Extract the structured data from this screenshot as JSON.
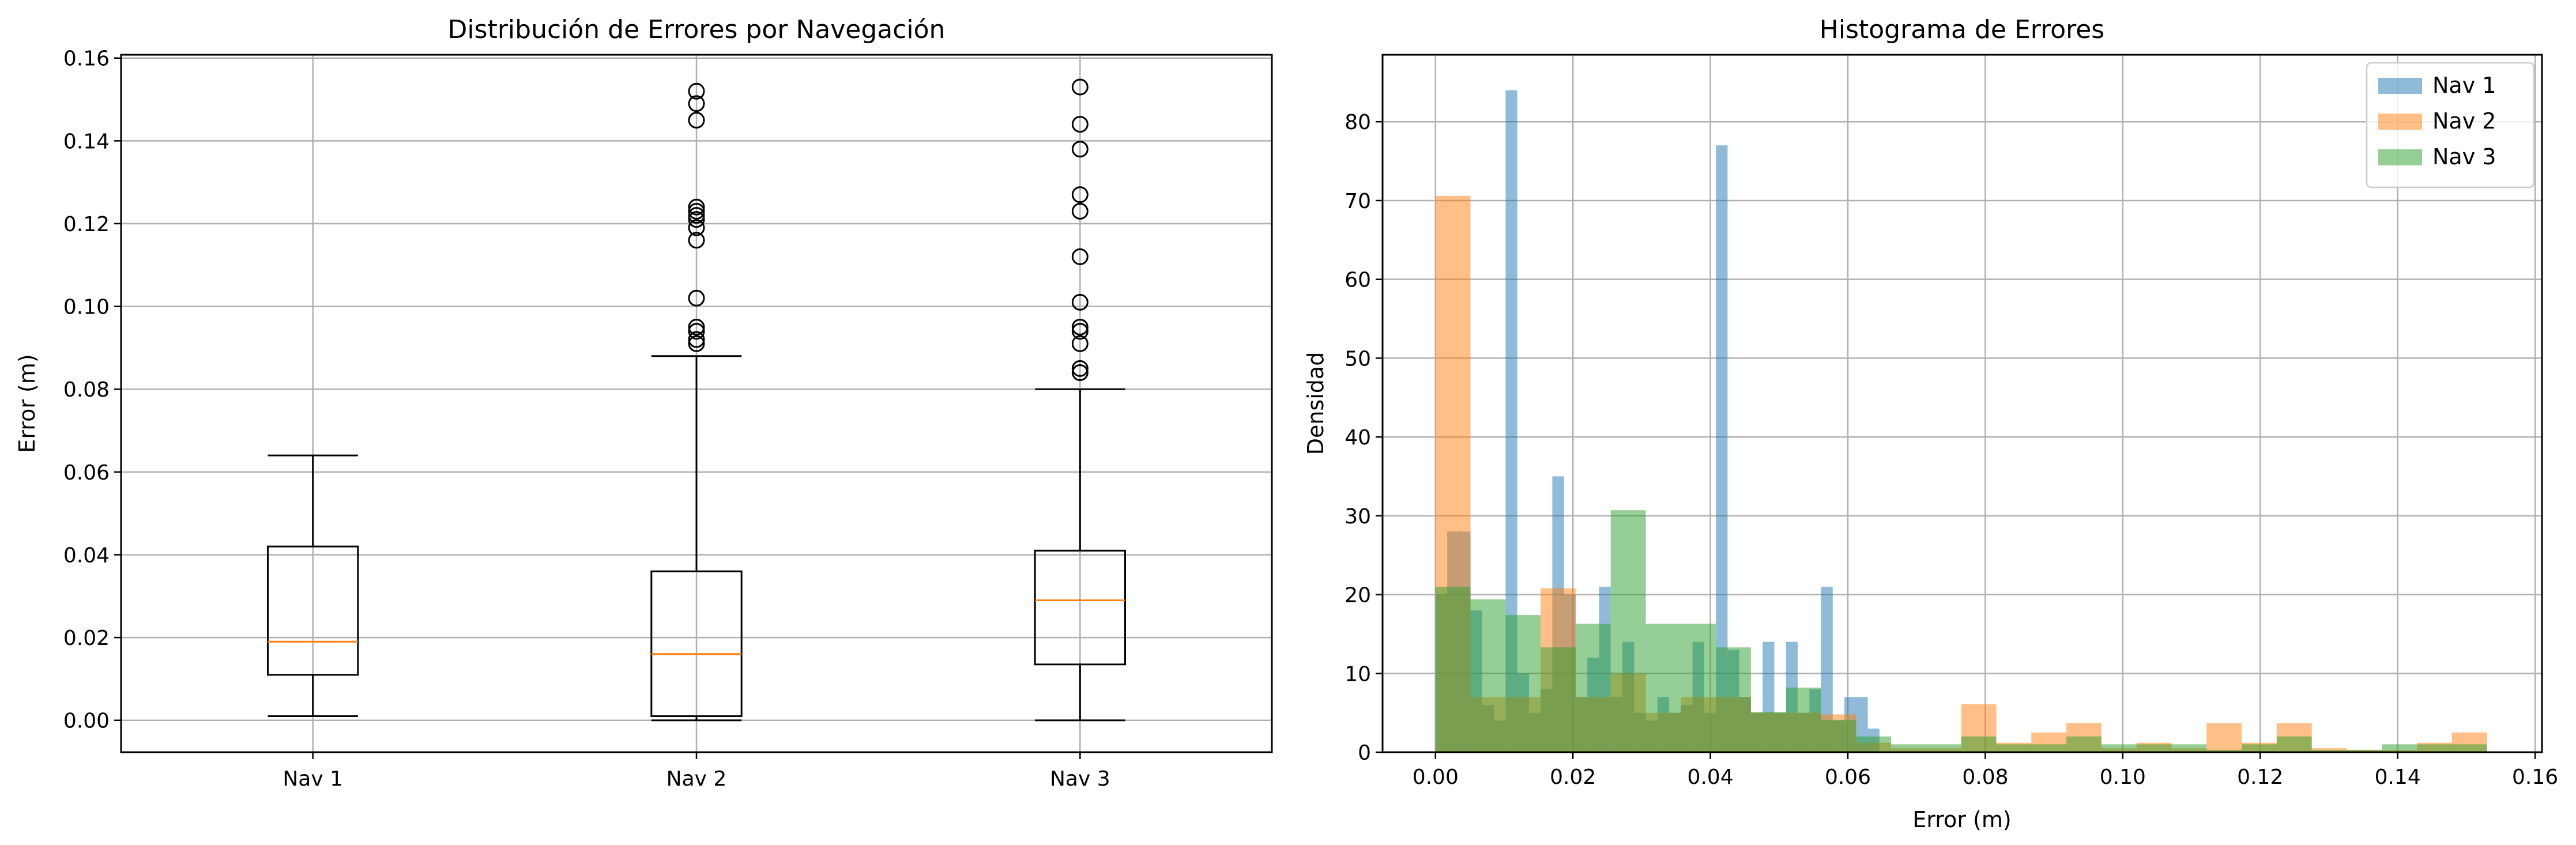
{
  "colors": {
    "nav1": "#1f77b4",
    "nav2": "#ff7f0e",
    "nav3": "#2ca02c",
    "median": "#ff7f0e",
    "grid": "#b0b0b0"
  },
  "chart_data": [
    {
      "type": "box",
      "title": "Distribución de Errores por Navegación",
      "xlabel": "",
      "ylabel": "Error (m)",
      "ylim": [
        -0.0077,
        0.1608
      ],
      "yticks": [
        0.0,
        0.02,
        0.04,
        0.06,
        0.08,
        0.1,
        0.12,
        0.14,
        0.16
      ],
      "ytick_labels": [
        "0.00",
        "0.02",
        "0.04",
        "0.06",
        "0.08",
        "0.10",
        "0.12",
        "0.14",
        "0.16"
      ],
      "grid": true,
      "categories": [
        "Nav 1",
        "Nav 2",
        "Nav 3"
      ],
      "boxes": [
        {
          "name": "Nav 1",
          "whisker_low": 0.001,
          "q1": 0.011,
          "median": 0.019,
          "q3": 0.042,
          "whisker_high": 0.064,
          "outliers": []
        },
        {
          "name": "Nav 2",
          "whisker_low": 0.0,
          "q1": 0.001,
          "median": 0.016,
          "q3": 0.036,
          "whisker_high": 0.088,
          "outliers": [
            0.091,
            0.092,
            0.094,
            0.095,
            0.102,
            0.116,
            0.119,
            0.121,
            0.122,
            0.123,
            0.124,
            0.145,
            0.149,
            0.152
          ]
        },
        {
          "name": "Nav 3",
          "whisker_low": 0.0,
          "q1": 0.0135,
          "median": 0.029,
          "q3": 0.041,
          "whisker_high": 0.08,
          "outliers": [
            0.084,
            0.085,
            0.091,
            0.094,
            0.095,
            0.101,
            0.112,
            0.123,
            0.127,
            0.138,
            0.144,
            0.153
          ]
        }
      ]
    },
    {
      "type": "histogram",
      "title": "Histograma de Errores",
      "xlabel": "Error (m)",
      "ylabel": "Densidad",
      "xlim": [
        -0.0077,
        0.161
      ],
      "ylim": [
        0,
        88.5
      ],
      "xticks": [
        0.0,
        0.02,
        0.04,
        0.06,
        0.08,
        0.1,
        0.12,
        0.14,
        0.16
      ],
      "xtick_labels": [
        "0.00",
        "0.02",
        "0.04",
        "0.06",
        "0.08",
        "0.10",
        "0.12",
        "0.14",
        "0.16"
      ],
      "yticks": [
        0,
        10,
        20,
        30,
        40,
        50,
        60,
        70,
        80
      ],
      "ytick_labels": [
        "0",
        "10",
        "20",
        "30",
        "40",
        "50",
        "60",
        "70",
        "80"
      ],
      "grid": true,
      "legend": "top-right",
      "opacity": 0.5,
      "series": [
        {
          "name": "Nav 1",
          "color": "#1f77b4",
          "bins": [
            [
              0.0,
              0.0017,
              20
            ],
            [
              0.0017,
              0.0034,
              28
            ],
            [
              0.0034,
              0.0051,
              28
            ],
            [
              0.0051,
              0.0068,
              18
            ],
            [
              0.0068,
              0.0085,
              6
            ],
            [
              0.0085,
              0.0102,
              4
            ],
            [
              0.0102,
              0.0119,
              84
            ],
            [
              0.0119,
              0.0136,
              10
            ],
            [
              0.0136,
              0.0153,
              5
            ],
            [
              0.0153,
              0.017,
              8
            ],
            [
              0.017,
              0.0187,
              35
            ],
            [
              0.0187,
              0.0204,
              20
            ],
            [
              0.0204,
              0.0221,
              7
            ],
            [
              0.0221,
              0.0238,
              12
            ],
            [
              0.0238,
              0.0255,
              21
            ],
            [
              0.0255,
              0.0272,
              7
            ],
            [
              0.0272,
              0.0289,
              14
            ],
            [
              0.0289,
              0.0306,
              5
            ],
            [
              0.0306,
              0.0323,
              4
            ],
            [
              0.0323,
              0.034,
              7
            ],
            [
              0.034,
              0.0357,
              5
            ],
            [
              0.0357,
              0.0374,
              6
            ],
            [
              0.0374,
              0.0391,
              14
            ],
            [
              0.0391,
              0.0408,
              5
            ],
            [
              0.0408,
              0.0425,
              77
            ],
            [
              0.0425,
              0.0442,
              13
            ],
            [
              0.0442,
              0.0459,
              7
            ],
            [
              0.0459,
              0.0476,
              5
            ],
            [
              0.0476,
              0.0493,
              14
            ],
            [
              0.0493,
              0.051,
              5
            ],
            [
              0.051,
              0.0527,
              14
            ],
            [
              0.0527,
              0.0544,
              5
            ],
            [
              0.0544,
              0.0561,
              8
            ],
            [
              0.0561,
              0.0578,
              21
            ],
            [
              0.0578,
              0.0595,
              4
            ],
            [
              0.0595,
              0.0612,
              7
            ],
            [
              0.0612,
              0.0629,
              7
            ],
            [
              0.0629,
              0.0646,
              3
            ]
          ]
        },
        {
          "name": "Nav 2",
          "color": "#ff7f0e",
          "bins": [
            [
              0.0,
              0.0051,
              70.6
            ],
            [
              0.0051,
              0.0102,
              7
            ],
            [
              0.0102,
              0.0153,
              7
            ],
            [
              0.0153,
              0.0204,
              20.8
            ],
            [
              0.0204,
              0.0255,
              7
            ],
            [
              0.0255,
              0.0306,
              10
            ],
            [
              0.0306,
              0.0357,
              5
            ],
            [
              0.0357,
              0.0408,
              7
            ],
            [
              0.0408,
              0.0459,
              7
            ],
            [
              0.0459,
              0.051,
              5
            ],
            [
              0.051,
              0.0561,
              5
            ],
            [
              0.0561,
              0.0612,
              4.8
            ],
            [
              0.0612,
              0.0663,
              1.2
            ],
            [
              0.0663,
              0.0714,
              0.5
            ],
            [
              0.0714,
              0.0765,
              0.5
            ],
            [
              0.0765,
              0.0816,
              6.1
            ],
            [
              0.0816,
              0.0867,
              1.2
            ],
            [
              0.0867,
              0.0918,
              2.5
            ],
            [
              0.0918,
              0.0969,
              3.7
            ],
            [
              0.0969,
              0.102,
              0.5
            ],
            [
              0.102,
              0.1071,
              1.2
            ],
            [
              0.1071,
              0.1122,
              0.5
            ],
            [
              0.1122,
              0.1173,
              3.7
            ],
            [
              0.1173,
              0.1224,
              1.2
            ],
            [
              0.1224,
              0.1275,
              3.7
            ],
            [
              0.1275,
              0.1326,
              0.5
            ],
            [
              0.1326,
              0.1377,
              0.3
            ],
            [
              0.1377,
              0.1428,
              0.3
            ],
            [
              0.1428,
              0.1479,
              1.2
            ],
            [
              0.1479,
              0.153,
              2.5
            ]
          ]
        },
        {
          "name": "Nav 3",
          "color": "#2ca02c",
          "bins": [
            [
              0.0,
              0.0051,
              21
            ],
            [
              0.0051,
              0.0102,
              19.4
            ],
            [
              0.0102,
              0.0153,
              17.4
            ],
            [
              0.0153,
              0.0204,
              13.3
            ],
            [
              0.0204,
              0.0255,
              16.3
            ],
            [
              0.0255,
              0.0306,
              30.7
            ],
            [
              0.0306,
              0.0357,
              16.3
            ],
            [
              0.0357,
              0.0408,
              16.3
            ],
            [
              0.0408,
              0.0459,
              13.3
            ],
            [
              0.0459,
              0.051,
              5.1
            ],
            [
              0.051,
              0.0561,
              8.2
            ],
            [
              0.0561,
              0.0612,
              4.1
            ],
            [
              0.0612,
              0.0663,
              2
            ],
            [
              0.0663,
              0.0714,
              1
            ],
            [
              0.0714,
              0.0765,
              1
            ],
            [
              0.0765,
              0.0816,
              2
            ],
            [
              0.0816,
              0.0867,
              1
            ],
            [
              0.0867,
              0.0918,
              1
            ],
            [
              0.0918,
              0.0969,
              2
            ],
            [
              0.0969,
              0.102,
              1
            ],
            [
              0.102,
              0.1071,
              1
            ],
            [
              0.1071,
              0.1122,
              1
            ],
            [
              0.1122,
              0.1173,
              0.3
            ],
            [
              0.1173,
              0.1224,
              1
            ],
            [
              0.1224,
              0.1275,
              2
            ],
            [
              0.1275,
              0.1326,
              0.3
            ],
            [
              0.1326,
              0.1377,
              0.3
            ],
            [
              0.1377,
              0.1428,
              1
            ],
            [
              0.1428,
              0.1479,
              1
            ],
            [
              0.1479,
              0.153,
              1
            ]
          ]
        }
      ]
    }
  ]
}
